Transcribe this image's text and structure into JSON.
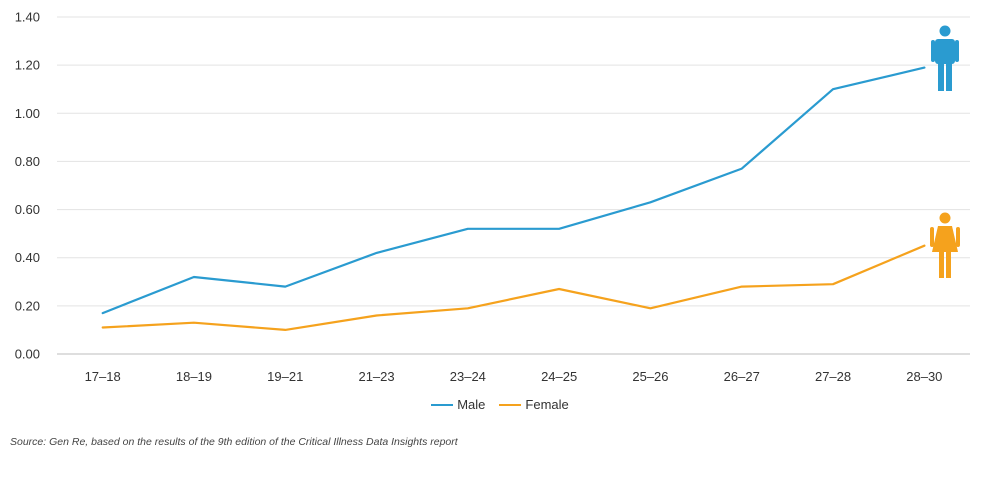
{
  "chart_data": {
    "type": "line",
    "categories": [
      "17-18",
      "18-19",
      "19-21",
      "21-23",
      "23-24",
      "24-25",
      "25-26",
      "26-27",
      "27-28",
      "28-30"
    ],
    "series": [
      {
        "name": "Male",
        "color": "#2a9bd0",
        "icon": "male-figure-icon",
        "values": [
          0.17,
          0.32,
          0.28,
          0.42,
          0.52,
          0.52,
          0.63,
          0.77,
          1.1,
          1.19
        ]
      },
      {
        "name": "Female",
        "color": "#f5a21d",
        "icon": "female-figure-icon",
        "values": [
          0.11,
          0.13,
          0.1,
          0.16,
          0.19,
          0.27,
          0.19,
          0.28,
          0.29,
          0.45
        ]
      }
    ],
    "yticks": [
      "0.00",
      "0.20",
      "0.40",
      "0.60",
      "0.80",
      "1.00",
      "1.20",
      "1.40"
    ],
    "ylim": [
      0,
      1.4
    ],
    "grid": true,
    "legend_position": "bottom-center"
  },
  "source_note": "Source: Gen Re, based on the results of the 9th edition of the Critical Illness Data Insights report"
}
